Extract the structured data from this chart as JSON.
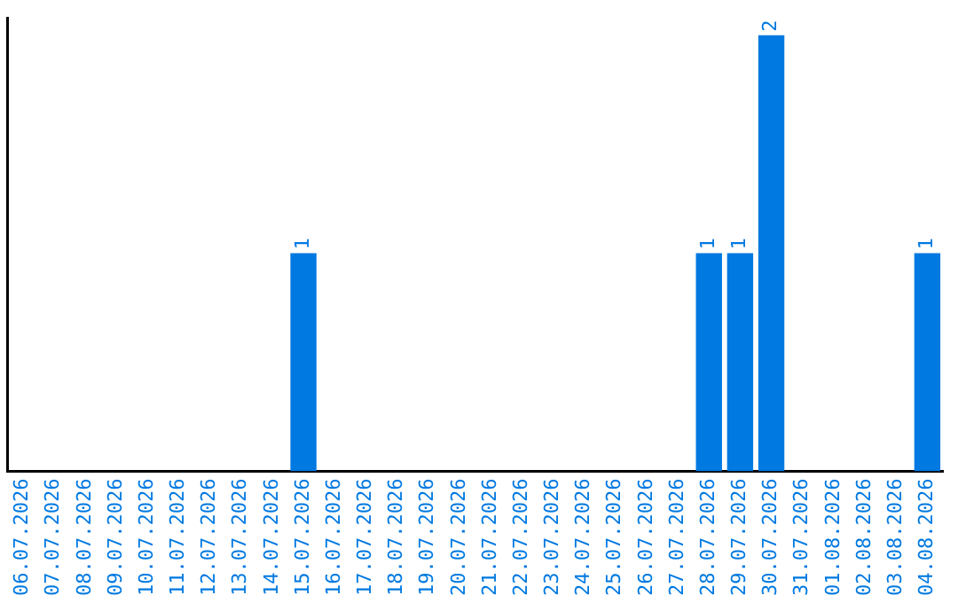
{
  "chart_data": {
    "type": "bar",
    "categories": [
      "06.07.2026",
      "07.07.2026",
      "08.07.2026",
      "09.07.2026",
      "10.07.2026",
      "11.07.2026",
      "12.07.2026",
      "13.07.2026",
      "14.07.2026",
      "15.07.2026",
      "16.07.2026",
      "17.07.2026",
      "18.07.2026",
      "19.07.2026",
      "20.07.2026",
      "21.07.2026",
      "22.07.2026",
      "23.07.2026",
      "24.07.2026",
      "25.07.2026",
      "26.07.2026",
      "27.07.2026",
      "28.07.2026",
      "29.07.2026",
      "30.07.2026",
      "31.07.2026",
      "01.08.2026",
      "02.08.2026",
      "03.08.2026",
      "04.08.2026"
    ],
    "values": [
      0,
      0,
      0,
      0,
      0,
      0,
      0,
      0,
      0,
      1,
      0,
      0,
      0,
      0,
      0,
      0,
      0,
      0,
      0,
      0,
      0,
      0,
      1,
      1,
      2,
      0,
      0,
      0,
      0,
      1
    ],
    "value_labels": [
      null,
      null,
      null,
      null,
      null,
      null,
      null,
      null,
      null,
      "1",
      null,
      null,
      null,
      null,
      null,
      null,
      null,
      null,
      null,
      null,
      null,
      null,
      "1",
      "1",
      "2",
      null,
      null,
      null,
      null,
      "1"
    ],
    "color": "#0079e1",
    "ylim": [
      0,
      2.08
    ],
    "tick_labels": "x",
    "grid": false,
    "legend": false
  }
}
